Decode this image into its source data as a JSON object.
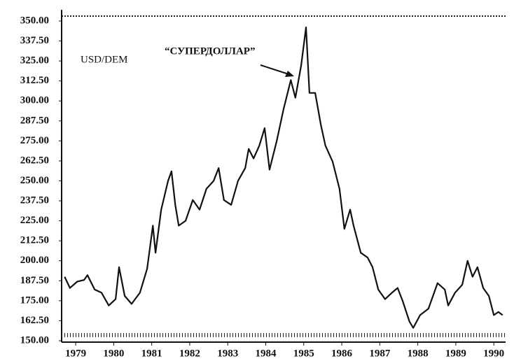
{
  "chart_data": {
    "type": "line",
    "annotations": [
      "USD/DEM",
      "“СУПЕРДОЛЛАР”"
    ],
    "x": [
      1978.71,
      1978.85,
      1979.04,
      1979.22,
      1979.31,
      1979.5,
      1979.68,
      1979.87,
      1980.05,
      1980.14,
      1980.29,
      1980.47,
      1980.69,
      1980.88,
      1981.03,
      1981.1,
      1981.25,
      1981.43,
      1981.52,
      1981.62,
      1981.71,
      1981.89,
      1982.08,
      1982.26,
      1982.44,
      1982.63,
      1982.76,
      1982.9,
      1983.09,
      1983.27,
      1983.46,
      1983.55,
      1983.68,
      1983.83,
      1983.97,
      1984.1,
      1984.29,
      1984.47,
      1984.66,
      1984.78,
      1984.93,
      1985.06,
      1985.15,
      1985.3,
      1985.45,
      1985.57,
      1985.76,
      1985.94,
      1986.07,
      1986.22,
      1986.31,
      1986.5,
      1986.68,
      1986.81,
      1986.96,
      1987.14,
      1987.32,
      1987.47,
      1987.6,
      1987.78,
      1987.88,
      1988.06,
      1988.28,
      1988.52,
      1988.71,
      1988.8,
      1988.98,
      1989.17,
      1989.31,
      1989.44,
      1989.57,
      1989.72,
      1989.87,
      1990.0,
      1990.12,
      1990.23
    ],
    "series": [
      {
        "name": "USD/DEM",
        "color": "#111111",
        "values": [
          190,
          183,
          187,
          188,
          191,
          182,
          180,
          172,
          176,
          196,
          178,
          173,
          180,
          195,
          222,
          205,
          232,
          250,
          256,
          235,
          222,
          225,
          238,
          232,
          245,
          250,
          258,
          238,
          235,
          250,
          258,
          270,
          264,
          272,
          283,
          257,
          275,
          295,
          313,
          302,
          322,
          346,
          305,
          305,
          285,
          272,
          262,
          245,
          220,
          232,
          222,
          205,
          202,
          196,
          182,
          176,
          180,
          183,
          175,
          162,
          158,
          166,
          170,
          186,
          182,
          172,
          180,
          185,
          200,
          190,
          196,
          183,
          178,
          166,
          168,
          166
        ]
      }
    ],
    "xlim": [
      1978.63,
      1990.31
    ],
    "xticks": [
      1979,
      1980,
      1981,
      1982,
      1983,
      1984,
      1985,
      1986,
      1987,
      1988,
      1989,
      1990
    ],
    "ylim": [
      150,
      350
    ],
    "yticks": [
      {
        "value": 150,
        "label": "150.00"
      },
      {
        "value": 162.5,
        "label": "162.50"
      },
      {
        "value": 175,
        "label": "175.00"
      },
      {
        "value": 187.5,
        "label": "187.50"
      },
      {
        "value": 200,
        "label": "200.00"
      },
      {
        "value": 212.5,
        "label": "212.50"
      },
      {
        "value": 225,
        "label": "225.00"
      },
      {
        "value": 237.5,
        "label": "237.50"
      },
      {
        "value": 250,
        "label": "250.00"
      },
      {
        "value": 262.5,
        "label": "262.50"
      },
      {
        "value": 275,
        "label": "275.00"
      },
      {
        "value": 287.5,
        "label": "287.50"
      },
      {
        "value": 300,
        "label": "300.00"
      },
      {
        "value": 312.5,
        "label": "312.50"
      },
      {
        "value": 325,
        "label": "325.00"
      },
      {
        "value": 337.5,
        "label": "337.50"
      },
      {
        "value": 350,
        "label": "350.00"
      }
    ],
    "grid": false
  }
}
